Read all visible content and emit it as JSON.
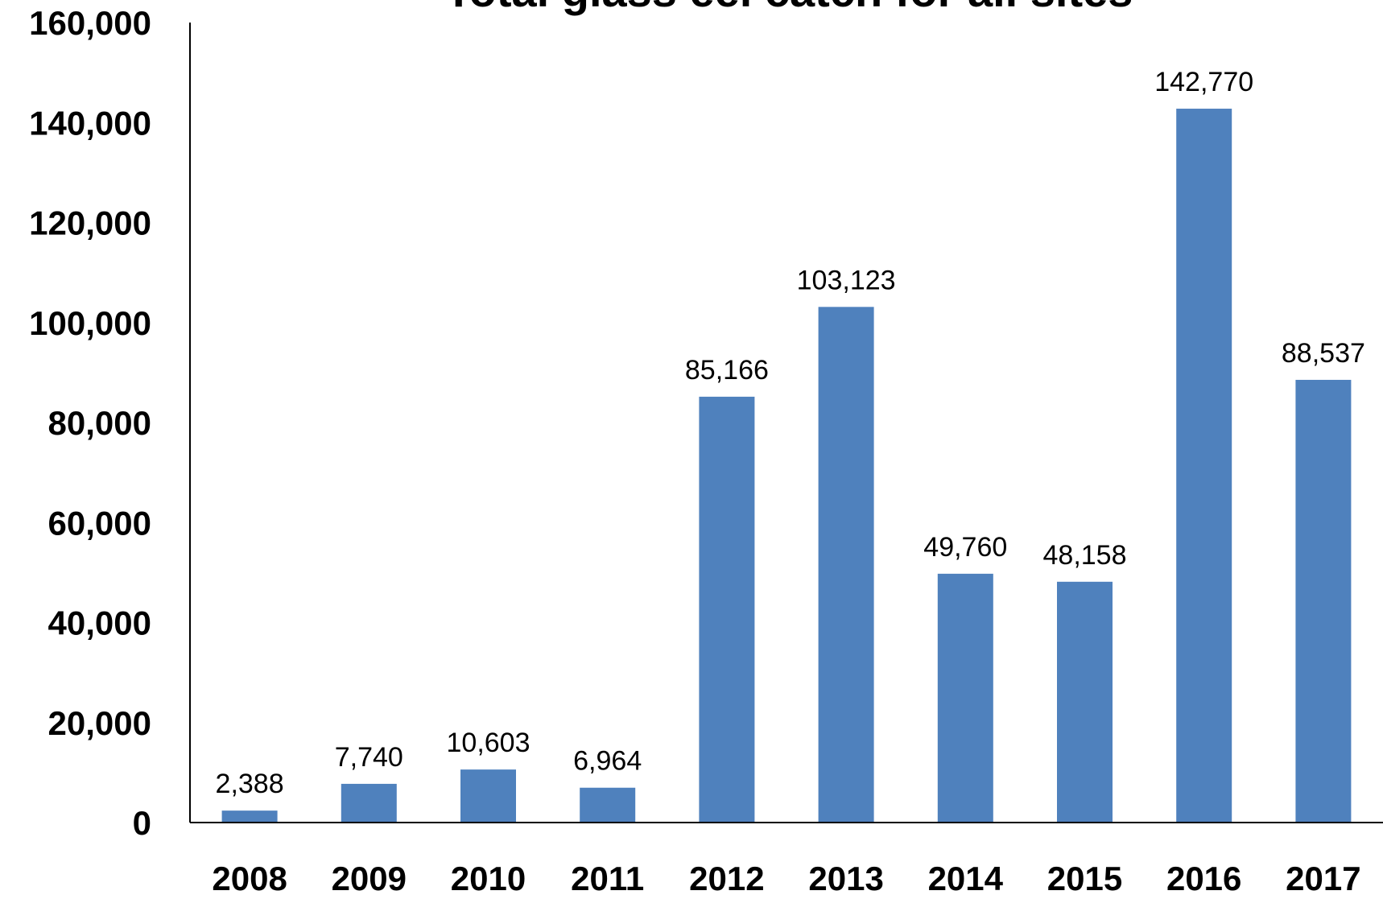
{
  "chart_data": {
    "type": "bar",
    "title": "Total glass eel catch for all sites",
    "xlabel": "",
    "ylabel": "",
    "categories": [
      "2008",
      "2009",
      "2010",
      "2011",
      "2012",
      "2013",
      "2014",
      "2015",
      "2016",
      "2017"
    ],
    "values": [
      2388,
      7740,
      10603,
      6964,
      85166,
      103123,
      49760,
      48158,
      142770,
      88537
    ],
    "data_labels": [
      "2,388",
      "7,740",
      "10,603",
      "6,964",
      "85,166",
      "103,123",
      "49,760",
      "48,158",
      "142,770",
      "88,537"
    ],
    "ylim": [
      0,
      160000
    ],
    "y_ticks": [
      0,
      20000,
      40000,
      60000,
      80000,
      100000,
      120000,
      140000,
      160000
    ],
    "y_tick_labels": [
      "0",
      "20,000",
      "40,000",
      "60,000",
      "80,000",
      "100,000",
      "120,000",
      "140,000",
      "160,000"
    ],
    "bar_color": "#4F81BD",
    "grid": false,
    "legend": "none"
  }
}
